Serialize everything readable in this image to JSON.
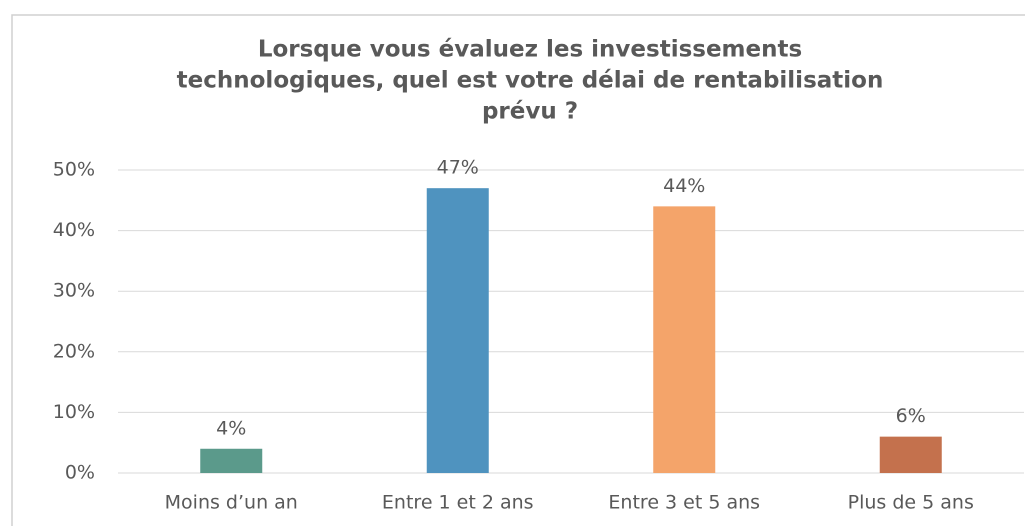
{
  "chart_data": {
    "type": "bar",
    "title": [
      "Lorsque vous évaluez les investissements",
      "technologiques, quel est votre délai de rentabilisation",
      "prévu ?"
    ],
    "categories": [
      "Moins d’un an",
      "Entre 1 et 2 ans",
      "Entre 3 et 5 ans",
      "Plus de 5 ans"
    ],
    "values": [
      4,
      47,
      44,
      6
    ],
    "value_labels": [
      "4%",
      "47%",
      "44%",
      "6%"
    ],
    "colors": [
      "#5b9a8b",
      "#4f93bf",
      "#f4a46a",
      "#c4714d"
    ],
    "ylim": [
      0,
      50
    ],
    "yticks": [
      {
        "value": 0,
        "label": "0%"
      },
      {
        "value": 10,
        "label": "10%"
      },
      {
        "value": 20,
        "label": "20%"
      },
      {
        "value": 30,
        "label": "30%"
      },
      {
        "value": 40,
        "label": "40%"
      },
      {
        "value": 50,
        "label": "50%"
      }
    ],
    "grid": true
  }
}
